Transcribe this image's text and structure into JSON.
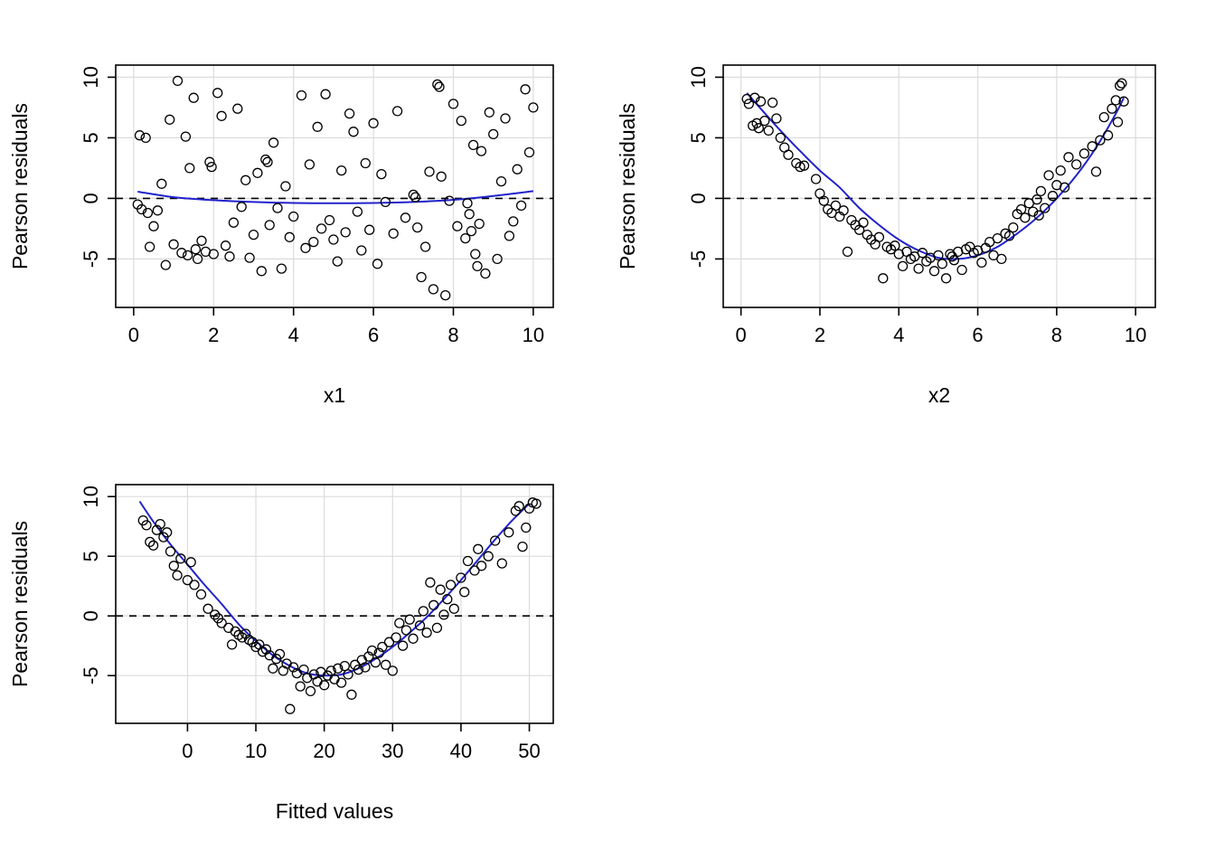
{
  "colors": {
    "background": "#ffffff",
    "curve": "#2222cc",
    "point_stroke": "#000000",
    "grid": "#dcdcdc",
    "zero_line": "#000000",
    "box": "#000000",
    "text": "#000000"
  },
  "chart_data": [
    {
      "type": "scatter",
      "title": "",
      "xlabel": "x1",
      "ylabel": "Pearson residuals",
      "xlim": [
        -0.45,
        10.5
      ],
      "ylim": [
        -9,
        11
      ],
      "xticks": [
        0,
        2,
        4,
        6,
        8,
        10
      ],
      "yticks": [
        -5,
        0,
        5,
        10
      ],
      "grid": true,
      "legend": "none",
      "zero_line": 0,
      "smooth_curve": [
        [
          0.1,
          0.55
        ],
        [
          1,
          0.1
        ],
        [
          2,
          -0.15
        ],
        [
          3,
          -0.3
        ],
        [
          4,
          -0.38
        ],
        [
          5,
          -0.4
        ],
        [
          6,
          -0.38
        ],
        [
          7,
          -0.3
        ],
        [
          8,
          -0.12
        ],
        [
          9,
          0.2
        ],
        [
          10,
          0.6
        ]
      ],
      "points": [
        [
          0.1,
          -0.5
        ],
        [
          0.15,
          5.2
        ],
        [
          0.2,
          -0.9
        ],
        [
          0.3,
          5
        ],
        [
          0.35,
          -1.2
        ],
        [
          0.4,
          -4
        ],
        [
          0.5,
          -2.3
        ],
        [
          0.6,
          -1
        ],
        [
          0.7,
          1.2
        ],
        [
          0.8,
          -5.5
        ],
        [
          0.9,
          6.5
        ],
        [
          1,
          -3.8
        ],
        [
          1.1,
          9.7
        ],
        [
          1.2,
          -4.5
        ],
        [
          1.3,
          5.1
        ],
        [
          1.35,
          -4.7
        ],
        [
          1.4,
          2.5
        ],
        [
          1.5,
          8.3
        ],
        [
          1.55,
          -4.2
        ],
        [
          1.6,
          -5
        ],
        [
          1.7,
          -3.5
        ],
        [
          1.8,
          -4.4
        ],
        [
          1.9,
          3
        ],
        [
          1.95,
          2.6
        ],
        [
          2,
          -4.6
        ],
        [
          2.1,
          8.7
        ],
        [
          2.2,
          6.8
        ],
        [
          2.3,
          -3.9
        ],
        [
          2.4,
          -4.8
        ],
        [
          2.5,
          -2
        ],
        [
          2.6,
          7.4
        ],
        [
          2.7,
          -0.7
        ],
        [
          2.8,
          1.5
        ],
        [
          2.9,
          -4.9
        ],
        [
          3,
          -3
        ],
        [
          3.1,
          2.1
        ],
        [
          3.2,
          -6
        ],
        [
          3.3,
          3.2
        ],
        [
          3.35,
          3
        ],
        [
          3.4,
          -2.2
        ],
        [
          3.5,
          4.6
        ],
        [
          3.6,
          -0.8
        ],
        [
          3.7,
          -5.8
        ],
        [
          3.8,
          1
        ],
        [
          3.9,
          -3.2
        ],
        [
          4,
          -1.5
        ],
        [
          4.2,
          8.5
        ],
        [
          4.3,
          -4.1
        ],
        [
          4.4,
          2.8
        ],
        [
          4.5,
          -3.6
        ],
        [
          4.6,
          5.9
        ],
        [
          4.7,
          -2.5
        ],
        [
          4.8,
          8.6
        ],
        [
          4.9,
          -1.8
        ],
        [
          5,
          -3.4
        ],
        [
          5.1,
          -5.2
        ],
        [
          5.2,
          2.3
        ],
        [
          5.3,
          -2.8
        ],
        [
          5.4,
          7
        ],
        [
          5.5,
          5.5
        ],
        [
          5.6,
          -1.1
        ],
        [
          5.7,
          -4.3
        ],
        [
          5.8,
          2.9
        ],
        [
          5.9,
          -2.6
        ],
        [
          6,
          6.2
        ],
        [
          6.1,
          -5.4
        ],
        [
          6.2,
          2
        ],
        [
          6.3,
          -0.3
        ],
        [
          6.5,
          -2.9
        ],
        [
          6.6,
          7.2
        ],
        [
          6.8,
          -1.6
        ],
        [
          7,
          0.3
        ],
        [
          7.05,
          0.1
        ],
        [
          7.1,
          -2.4
        ],
        [
          7.2,
          -6.5
        ],
        [
          7.3,
          -4
        ],
        [
          7.4,
          2.2
        ],
        [
          7.5,
          -7.5
        ],
        [
          7.6,
          9.4
        ],
        [
          7.65,
          9.2
        ],
        [
          7.7,
          1.8
        ],
        [
          7.8,
          -8
        ],
        [
          7.9,
          -0.2
        ],
        [
          8,
          7.8
        ],
        [
          8.1,
          -2.3
        ],
        [
          8.2,
          6.4
        ],
        [
          8.3,
          -3.3
        ],
        [
          8.35,
          -0.4
        ],
        [
          8.4,
          -1.3
        ],
        [
          8.45,
          -2.7
        ],
        [
          8.5,
          4.4
        ],
        [
          8.55,
          -4.6
        ],
        [
          8.6,
          -5.6
        ],
        [
          8.65,
          -2.1
        ],
        [
          8.7,
          3.9
        ],
        [
          8.8,
          -6.2
        ],
        [
          8.9,
          7.1
        ],
        [
          9,
          5.3
        ],
        [
          9.1,
          -5
        ],
        [
          9.2,
          1.4
        ],
        [
          9.3,
          6.6
        ],
        [
          9.4,
          -3.1
        ],
        [
          9.5,
          -1.9
        ],
        [
          9.6,
          2.4
        ],
        [
          9.7,
          -0.6
        ],
        [
          9.8,
          9
        ],
        [
          9.9,
          3.8
        ],
        [
          10,
          7.5
        ]
      ]
    },
    {
      "type": "scatter",
      "title": "",
      "xlabel": "x2",
      "ylabel": "Pearson residuals",
      "xlim": [
        -0.45,
        10.5
      ],
      "ylim": [
        -9,
        11
      ],
      "xticks": [
        0,
        2,
        4,
        6,
        8,
        10
      ],
      "yticks": [
        -5,
        0,
        5,
        10
      ],
      "grid": true,
      "legend": "none",
      "zero_line": 0,
      "smooth_curve": [
        [
          0.15,
          8.7
        ],
        [
          0.5,
          7.4
        ],
        [
          1,
          5.6
        ],
        [
          1.5,
          3.9
        ],
        [
          2,
          2.3
        ],
        [
          2.5,
          0.9
        ],
        [
          3,
          -0.8
        ],
        [
          3.5,
          -2.2
        ],
        [
          4,
          -3.4
        ],
        [
          4.5,
          -4.3
        ],
        [
          5,
          -4.9
        ],
        [
          5.5,
          -5
        ],
        [
          6,
          -4.7
        ],
        [
          6.5,
          -4
        ],
        [
          7,
          -2.9
        ],
        [
          7.5,
          -1.6
        ],
        [
          8,
          0
        ],
        [
          8.5,
          1.9
        ],
        [
          9,
          4.2
        ],
        [
          9.5,
          7
        ],
        [
          9.7,
          8.3
        ]
      ],
      "points": [
        [
          0.15,
          8.2
        ],
        [
          0.2,
          7.8
        ],
        [
          0.3,
          6
        ],
        [
          0.35,
          8.3
        ],
        [
          0.4,
          6.2
        ],
        [
          0.45,
          5.8
        ],
        [
          0.5,
          8
        ],
        [
          0.6,
          6.4
        ],
        [
          0.7,
          5.6
        ],
        [
          0.8,
          7.9
        ],
        [
          0.9,
          6.6
        ],
        [
          1,
          5
        ],
        [
          1.1,
          4.2
        ],
        [
          1.2,
          3.6
        ],
        [
          1.4,
          2.9
        ],
        [
          1.5,
          2.6
        ],
        [
          1.6,
          2.7
        ],
        [
          1.9,
          1.6
        ],
        [
          2,
          0.4
        ],
        [
          2.1,
          -0.2
        ],
        [
          2.2,
          -0.9
        ],
        [
          2.3,
          -1.2
        ],
        [
          2.4,
          -0.6
        ],
        [
          2.5,
          -1.5
        ],
        [
          2.6,
          -1
        ],
        [
          2.7,
          -4.4
        ],
        [
          2.8,
          -1.8
        ],
        [
          2.9,
          -2.2
        ],
        [
          3,
          -2.6
        ],
        [
          3.1,
          -2
        ],
        [
          3.2,
          -3
        ],
        [
          3.3,
          -3.4
        ],
        [
          3.4,
          -3.8
        ],
        [
          3.5,
          -3.2
        ],
        [
          3.6,
          -6.6
        ],
        [
          3.7,
          -4
        ],
        [
          3.8,
          -4.2
        ],
        [
          3.9,
          -3.9
        ],
        [
          4,
          -4.6
        ],
        [
          4.1,
          -5.6
        ],
        [
          4.2,
          -4.4
        ],
        [
          4.3,
          -5
        ],
        [
          4.4,
          -4.8
        ],
        [
          4.5,
          -5.8
        ],
        [
          4.6,
          -4.5
        ],
        [
          4.7,
          -5.2
        ],
        [
          4.8,
          -4.9
        ],
        [
          4.9,
          -6
        ],
        [
          5,
          -4.7
        ],
        [
          5.1,
          -5.4
        ],
        [
          5.2,
          -6.6
        ],
        [
          5.3,
          -4.6
        ],
        [
          5.35,
          -4.8
        ],
        [
          5.4,
          -5.1
        ],
        [
          5.5,
          -4.4
        ],
        [
          5.6,
          -5.9
        ],
        [
          5.7,
          -4.2
        ],
        [
          5.8,
          -4
        ],
        [
          5.9,
          -4.5
        ],
        [
          6,
          -4.3
        ],
        [
          6.1,
          -5.3
        ],
        [
          6.2,
          -4.1
        ],
        [
          6.3,
          -3.6
        ],
        [
          6.4,
          -4.7
        ],
        [
          6.5,
          -3.3
        ],
        [
          6.6,
          -5
        ],
        [
          6.7,
          -2.9
        ],
        [
          6.8,
          -3.1
        ],
        [
          6.9,
          -2.4
        ],
        [
          7,
          -1.3
        ],
        [
          7.1,
          -0.9
        ],
        [
          7.2,
          -1.6
        ],
        [
          7.3,
          -0.4
        ],
        [
          7.4,
          -1.1
        ],
        [
          7.5,
          -0.1
        ],
        [
          7.55,
          -1.4
        ],
        [
          7.6,
          0.6
        ],
        [
          7.7,
          -0.8
        ],
        [
          7.8,
          1.9
        ],
        [
          7.9,
          0.2
        ],
        [
          8,
          1.1
        ],
        [
          8.1,
          2.3
        ],
        [
          8.2,
          0.9
        ],
        [
          8.3,
          3.4
        ],
        [
          8.5,
          2.8
        ],
        [
          8.7,
          3.7
        ],
        [
          8.9,
          4.3
        ],
        [
          9,
          2.2
        ],
        [
          9.1,
          4.8
        ],
        [
          9.2,
          6.7
        ],
        [
          9.3,
          5.2
        ],
        [
          9.4,
          7.4
        ],
        [
          9.5,
          8.1
        ],
        [
          9.55,
          6.3
        ],
        [
          9.6,
          9.3
        ],
        [
          9.65,
          9.5
        ],
        [
          9.7,
          8
        ]
      ]
    },
    {
      "type": "scatter",
      "title": "",
      "xlabel": "Fitted values",
      "ylabel": "Pearson residuals",
      "xlim": [
        -10.5,
        53.5
      ],
      "ylim": [
        -9,
        11
      ],
      "xticks": [
        0,
        10,
        20,
        30,
        40,
        50
      ],
      "yticks": [
        -5,
        0,
        5,
        10
      ],
      "grid": true,
      "legend": "none",
      "zero_line": 0,
      "smooth_curve": [
        [
          -7,
          9.6
        ],
        [
          -5,
          7.9
        ],
        [
          -2.5,
          6
        ],
        [
          0,
          4.3
        ],
        [
          2.5,
          2.6
        ],
        [
          5,
          1
        ],
        [
          7.5,
          -0.7
        ],
        [
          10,
          -2.1
        ],
        [
          12.5,
          -3.3
        ],
        [
          15,
          -4.2
        ],
        [
          17.5,
          -4.8
        ],
        [
          20,
          -5
        ],
        [
          22.5,
          -4.9
        ],
        [
          25,
          -4.4
        ],
        [
          27.5,
          -3.6
        ],
        [
          30,
          -2.6
        ],
        [
          32.5,
          -1.4
        ],
        [
          35,
          -0.1
        ],
        [
          37.5,
          1.4
        ],
        [
          40,
          3
        ],
        [
          42.5,
          4.7
        ],
        [
          45,
          6.4
        ],
        [
          47.5,
          8
        ],
        [
          50,
          9.4
        ]
      ],
      "points": [
        [
          -6.5,
          8
        ],
        [
          -6,
          7.6
        ],
        [
          -5.5,
          6.2
        ],
        [
          -5,
          5.9
        ],
        [
          -4.5,
          7.2
        ],
        [
          -4,
          7.7
        ],
        [
          -3.5,
          6.6
        ],
        [
          -3,
          7
        ],
        [
          -2.5,
          5.4
        ],
        [
          -2,
          4.2
        ],
        [
          -1.5,
          3.4
        ],
        [
          -1,
          4.8
        ],
        [
          0,
          3
        ],
        [
          0.5,
          4.5
        ],
        [
          1,
          2.6
        ],
        [
          2,
          1.8
        ],
        [
          3,
          0.6
        ],
        [
          4,
          0.1
        ],
        [
          4.5,
          -0.2
        ],
        [
          5,
          -0.6
        ],
        [
          6,
          -1
        ],
        [
          6.5,
          -2.4
        ],
        [
          7,
          -1.3
        ],
        [
          7.5,
          -1.6
        ],
        [
          8,
          -1.8
        ],
        [
          8.5,
          -1.5
        ],
        [
          9,
          -2
        ],
        [
          9.5,
          -2.2
        ],
        [
          10,
          -2.6
        ],
        [
          10.5,
          -2.4
        ],
        [
          11,
          -3
        ],
        [
          11.5,
          -2.8
        ],
        [
          12,
          -3.3
        ],
        [
          12.5,
          -4.4
        ],
        [
          13,
          -3.6
        ],
        [
          13.5,
          -3.2
        ],
        [
          14,
          -4.6
        ],
        [
          14.5,
          -4
        ],
        [
          15,
          -7.8
        ],
        [
          15.5,
          -4.3
        ],
        [
          16,
          -4.8
        ],
        [
          16.5,
          -5.9
        ],
        [
          17,
          -4.5
        ],
        [
          17.5,
          -5.2
        ],
        [
          18,
          -6.3
        ],
        [
          18.5,
          -4.9
        ],
        [
          19,
          -5.5
        ],
        [
          19.5,
          -4.7
        ],
        [
          20,
          -5.8
        ],
        [
          20.5,
          -5
        ],
        [
          21,
          -4.6
        ],
        [
          21.5,
          -5.3
        ],
        [
          22,
          -4.4
        ],
        [
          22.5,
          -5.6
        ],
        [
          23,
          -4.2
        ],
        [
          23.5,
          -4.9
        ],
        [
          24,
          -6.6
        ],
        [
          24.5,
          -4.1
        ],
        [
          25,
          -4.5
        ],
        [
          25.5,
          -3.7
        ],
        [
          26,
          -4.3
        ],
        [
          26.5,
          -3.4
        ],
        [
          27,
          -2.9
        ],
        [
          27.5,
          -3.9
        ],
        [
          28,
          -3.1
        ],
        [
          28.5,
          -2.6
        ],
        [
          29,
          -4.1
        ],
        [
          29.5,
          -2.2
        ],
        [
          30,
          -4.6
        ],
        [
          30.5,
          -1.8
        ],
        [
          31,
          -0.6
        ],
        [
          31.5,
          -2.5
        ],
        [
          32,
          -1.2
        ],
        [
          32.5,
          -0.3
        ],
        [
          33,
          -1.9
        ],
        [
          34,
          -0.8
        ],
        [
          34.5,
          0.4
        ],
        [
          35,
          -1.4
        ],
        [
          35.5,
          2.8
        ],
        [
          36,
          0.9
        ],
        [
          36.5,
          -1
        ],
        [
          37,
          2.2
        ],
        [
          37.5,
          0.1
        ],
        [
          38,
          1.4
        ],
        [
          38.5,
          2.6
        ],
        [
          39,
          0.6
        ],
        [
          40,
          3.2
        ],
        [
          40.5,
          2
        ],
        [
          41,
          4.6
        ],
        [
          42,
          3.8
        ],
        [
          42.5,
          5.6
        ],
        [
          43,
          4.2
        ],
        [
          44,
          5
        ],
        [
          45,
          6.3
        ],
        [
          46,
          4.4
        ],
        [
          47,
          7
        ],
        [
          48,
          8.8
        ],
        [
          48.5,
          9.2
        ],
        [
          49,
          5.8
        ],
        [
          49.5,
          7.4
        ],
        [
          50,
          9
        ],
        [
          50.5,
          9.5
        ],
        [
          51,
          9.4
        ]
      ]
    }
  ]
}
